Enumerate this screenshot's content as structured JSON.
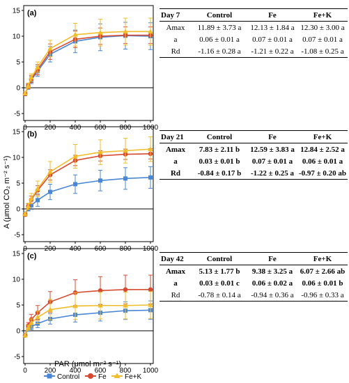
{
  "chart_data": [
    {
      "type": "line",
      "panel": "(a)",
      "ylim": [
        -5,
        15
      ],
      "yticks": [
        -5,
        0,
        5,
        10,
        15
      ],
      "xlim": [
        0,
        1000
      ],
      "xticks": [
        0,
        200,
        400,
        600,
        800,
        1000
      ],
      "x": [
        0,
        25,
        50,
        100,
        200,
        400,
        600,
        800,
        1000
      ],
      "series": [
        {
          "name": "Control",
          "values": [
            -1.2,
            0.2,
            1.5,
            3.2,
            6.5,
            9.0,
            9.8,
            10.1,
            10.0
          ],
          "err": [
            0.3,
            0.5,
            0.7,
            1.0,
            1.5,
            2.2,
            2.6,
            2.6,
            2.6
          ]
        },
        {
          "name": "Fe",
          "values": [
            -1.2,
            0.3,
            1.7,
            3.5,
            7.0,
            9.4,
            10.0,
            10.2,
            10.2
          ],
          "err": [
            0.3,
            0.5,
            0.7,
            1.0,
            1.5,
            1.6,
            1.6,
            1.6,
            1.6
          ]
        },
        {
          "name": "Fe+K",
          "values": [
            -1.1,
            0.4,
            2.0,
            4.0,
            7.6,
            10.3,
            10.7,
            10.9,
            10.9
          ],
          "err": [
            0.3,
            0.5,
            0.7,
            1.0,
            1.6,
            2.2,
            2.6,
            2.6,
            2.6
          ]
        }
      ]
    },
    {
      "type": "line",
      "panel": "(b)",
      "ylim": [
        -5,
        15
      ],
      "yticks": [
        -5,
        0,
        5,
        10,
        15
      ],
      "xlim": [
        0,
        1000
      ],
      "xticks": [
        0,
        200,
        400,
        600,
        800,
        1000
      ],
      "x": [
        0,
        25,
        50,
        100,
        200,
        400,
        600,
        800,
        1000
      ],
      "series": [
        {
          "name": "Control",
          "values": [
            -0.9,
            0.0,
            0.7,
            1.7,
            3.3,
            4.8,
            5.5,
            5.9,
            6.1
          ],
          "err": [
            0.2,
            0.4,
            0.8,
            1.2,
            1.5,
            1.8,
            2.0,
            2.1,
            2.1
          ]
        },
        {
          "name": "Fe",
          "values": [
            -1.1,
            0.5,
            1.8,
            3.6,
            6.6,
            9.4,
            10.3,
            10.6,
            10.7
          ],
          "err": [
            0.3,
            0.5,
            0.7,
            0.9,
            1.0,
            1.0,
            1.0,
            1.0,
            1.0
          ]
        },
        {
          "name": "Fe+K",
          "values": [
            -1.0,
            0.5,
            2.0,
            3.9,
            7.2,
            10.2,
            11.0,
            11.3,
            11.6
          ],
          "err": [
            0.3,
            0.6,
            1.0,
            1.5,
            2.0,
            2.3,
            2.4,
            2.4,
            2.4
          ]
        }
      ]
    },
    {
      "type": "line",
      "panel": "(c)",
      "ylim": [
        -5,
        15
      ],
      "yticks": [
        -5,
        0,
        5,
        10,
        15
      ],
      "xlim": [
        0,
        1000
      ],
      "xticks": [
        0,
        200,
        400,
        600,
        800,
        1000
      ],
      "xlabel": "PAR (μmol m⁻² s⁻¹)",
      "x": [
        0,
        25,
        50,
        100,
        200,
        400,
        600,
        800,
        1000
      ],
      "series": [
        {
          "name": "Control",
          "values": [
            -0.8,
            0.3,
            0.8,
            1.4,
            2.3,
            3.1,
            3.5,
            3.9,
            4.0
          ],
          "err": [
            0.2,
            0.4,
            0.6,
            0.8,
            1.0,
            1.4,
            1.6,
            1.7,
            1.8
          ]
        },
        {
          "name": "Fe",
          "values": [
            -0.9,
            1.0,
            2.2,
            3.5,
            5.6,
            7.4,
            7.8,
            8.0,
            8.0
          ],
          "err": [
            0.3,
            0.6,
            1.0,
            1.4,
            2.0,
            2.5,
            2.7,
            2.8,
            2.8
          ]
        },
        {
          "name": "Fe+K",
          "values": [
            -0.9,
            0.6,
            1.5,
            2.6,
            4.1,
            4.8,
            4.9,
            4.9,
            5.0
          ],
          "err": [
            0.3,
            0.5,
            0.8,
            1.2,
            2.0,
            2.6,
            2.6,
            2.6,
            2.6
          ]
        }
      ]
    }
  ],
  "ylabel_shared": "A (μmol CO₂ m⁻² s⁻¹)",
  "legend": [
    {
      "name": "Control",
      "color": "#4a86d6",
      "marker": "square"
    },
    {
      "name": "Fe",
      "color": "#d84a30",
      "marker": "circle"
    },
    {
      "name": "Fe+K",
      "color": "#f0bd2a",
      "marker": "triangle"
    }
  ],
  "tables": [
    {
      "header": [
        "Day 7",
        "Control",
        "Fe",
        "Fe+K"
      ],
      "rows": [
        [
          "Amax",
          "11.89 ± 3.73 a",
          "12.13 ± 1.84 a",
          "12.30 ± 3.00 a"
        ],
        [
          "a",
          "0.06 ± 0.01 a",
          "0.07 ± 0.01 a",
          "0.07 ± 0.01 a"
        ],
        [
          "Rd",
          "-1.16 ± 0.28 a",
          "-1.21 ± 0.22 a",
          "-1.08 ± 0.25 a"
        ]
      ],
      "bold_rows": []
    },
    {
      "header": [
        "Day 21",
        "Control",
        "Fe",
        "Fe+K"
      ],
      "rows": [
        [
          "Amax",
          "7.83 ± 2.11 b",
          "12.59 ± 3.83 a",
          "12.84 ± 2.52 a"
        ],
        [
          "a",
          "0.03 ± 0.01 b",
          "0.07 ± 0.01 a",
          "0.06 ± 0.01 a"
        ],
        [
          "Rd",
          "-0.84 ± 0.17 b",
          "-1.22 ± 0.25 a",
          "-0.97 ± 0.20 ab"
        ]
      ],
      "bold_rows": [
        0,
        1,
        2
      ]
    },
    {
      "header": [
        "Day 42",
        "Control",
        "Fe",
        "Fe+K"
      ],
      "rows": [
        [
          "Amax",
          "5.13 ± 1.77 b",
          "9.38 ± 3.25 a",
          "6.07 ± 2.66 ab"
        ],
        [
          "a",
          "0.03 ± 0.01 c",
          "0.06 ± 0.02 a",
          "0.06 ± 0.01 b"
        ],
        [
          "Rd",
          "-0.78 ± 0.14 a",
          "-0.94 ± 0.36 a",
          "-0.96 ± 0.33 a"
        ]
      ],
      "bold_rows": [
        0,
        1
      ]
    }
  ]
}
